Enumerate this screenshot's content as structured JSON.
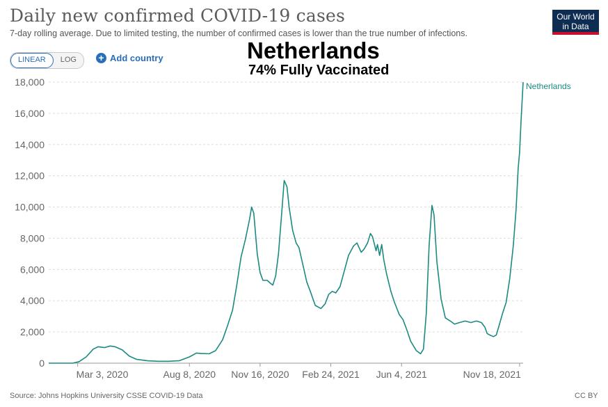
{
  "header": {
    "title": "Daily new confirmed COVID-19 cases",
    "subtitle": "7-day rolling average. Due to limited testing, the number of confirmed cases is lower than the true number of infections.",
    "logo_line1": "Our World",
    "logo_line2": "in Data"
  },
  "controls": {
    "linear_label": "LINEAR",
    "log_label": "LOG",
    "add_icon": "plus-circle-icon",
    "add_country_label": "Add country"
  },
  "overlay": {
    "title": "Netherlands",
    "subtitle": "74% Fully Vaccinated"
  },
  "footer": {
    "source": "Source: Johns Hopkins University CSSE COVID-19 Data",
    "license": "CC BY"
  },
  "colors": {
    "series": "#1b8a80",
    "accent": "#2a6ebb"
  },
  "chart_data": {
    "type": "line",
    "title": "Daily new confirmed COVID-19 cases",
    "xlabel": "",
    "ylabel": "",
    "grid": true,
    "legend": "end-of-line label",
    "ylim": [
      0,
      18000
    ],
    "xlim": [
      "2020-01-22",
      "2021-11-23"
    ],
    "x_ticks": [
      "2020-03-03",
      "2020-08-08",
      "2020-11-16",
      "2021-02-24",
      "2021-06-04",
      "2021-11-18"
    ],
    "x_tick_labels": [
      "Mar 3, 2020",
      "Aug 8, 2020",
      "Nov 16, 2020",
      "Feb 24, 2021",
      "Jun 4, 2021",
      "Nov 18, 2021"
    ],
    "y_ticks": [
      0,
      2000,
      4000,
      6000,
      8000,
      10000,
      12000,
      14000,
      16000,
      18000
    ],
    "y_tick_labels": [
      "0",
      "2,000",
      "4,000",
      "6,000",
      "8,000",
      "10,000",
      "12,000",
      "14,000",
      "16,000",
      "18,000"
    ],
    "series": [
      {
        "name": "Netherlands",
        "points": [
          [
            "2020-01-22",
            0
          ],
          [
            "2020-02-25",
            0
          ],
          [
            "2020-03-05",
            100
          ],
          [
            "2020-03-15",
            400
          ],
          [
            "2020-03-25",
            900
          ],
          [
            "2020-04-01",
            1050
          ],
          [
            "2020-04-10",
            1000
          ],
          [
            "2020-04-18",
            1100
          ],
          [
            "2020-04-25",
            1050
          ],
          [
            "2020-05-05",
            850
          ],
          [
            "2020-05-15",
            450
          ],
          [
            "2020-05-25",
            250
          ],
          [
            "2020-06-10",
            150
          ],
          [
            "2020-06-25",
            120
          ],
          [
            "2020-07-10",
            120
          ],
          [
            "2020-07-25",
            160
          ],
          [
            "2020-08-08",
            400
          ],
          [
            "2020-08-18",
            650
          ],
          [
            "2020-08-24",
            620
          ],
          [
            "2020-09-05",
            600
          ],
          [
            "2020-09-14",
            800
          ],
          [
            "2020-09-24",
            1500
          ],
          [
            "2020-10-01",
            2400
          ],
          [
            "2020-10-08",
            3400
          ],
          [
            "2020-10-14",
            5000
          ],
          [
            "2020-10-20",
            6800
          ],
          [
            "2020-10-26",
            7900
          ],
          [
            "2020-11-01",
            9200
          ],
          [
            "2020-11-04",
            10000
          ],
          [
            "2020-11-07",
            9600
          ],
          [
            "2020-11-12",
            7000
          ],
          [
            "2020-11-16",
            5800
          ],
          [
            "2020-11-20",
            5300
          ],
          [
            "2020-11-26",
            5300
          ],
          [
            "2020-12-01",
            5100
          ],
          [
            "2020-12-04",
            5000
          ],
          [
            "2020-12-08",
            5600
          ],
          [
            "2020-12-12",
            7000
          ],
          [
            "2020-12-16",
            9300
          ],
          [
            "2020-12-20",
            11700
          ],
          [
            "2020-12-24",
            11300
          ],
          [
            "2020-12-27",
            10000
          ],
          [
            "2021-01-01",
            8500
          ],
          [
            "2021-01-06",
            7700
          ],
          [
            "2021-01-10",
            7400
          ],
          [
            "2021-01-15",
            6400
          ],
          [
            "2021-01-21",
            5200
          ],
          [
            "2021-01-26",
            4600
          ],
          [
            "2021-02-02",
            3700
          ],
          [
            "2021-02-10",
            3500
          ],
          [
            "2021-02-16",
            3800
          ],
          [
            "2021-02-21",
            4400
          ],
          [
            "2021-02-26",
            4600
          ],
          [
            "2021-03-03",
            4500
          ],
          [
            "2021-03-09",
            4900
          ],
          [
            "2021-03-15",
            5900
          ],
          [
            "2021-03-21",
            6900
          ],
          [
            "2021-03-28",
            7500
          ],
          [
            "2021-04-02",
            7700
          ],
          [
            "2021-04-08",
            7100
          ],
          [
            "2021-04-12",
            7300
          ],
          [
            "2021-04-17",
            7700
          ],
          [
            "2021-04-21",
            8300
          ],
          [
            "2021-04-24",
            8100
          ],
          [
            "2021-04-29",
            7200
          ],
          [
            "2021-05-01",
            7600
          ],
          [
            "2021-05-04",
            6900
          ],
          [
            "2021-05-07",
            7600
          ],
          [
            "2021-05-10",
            6600
          ],
          [
            "2021-05-14",
            5700
          ],
          [
            "2021-05-20",
            4600
          ],
          [
            "2021-05-25",
            3900
          ],
          [
            "2021-06-01",
            3100
          ],
          [
            "2021-06-06",
            2800
          ],
          [
            "2021-06-11",
            2200
          ],
          [
            "2021-06-17",
            1400
          ],
          [
            "2021-06-25",
            800
          ],
          [
            "2021-07-01",
            600
          ],
          [
            "2021-07-05",
            900
          ],
          [
            "2021-07-09",
            3200
          ],
          [
            "2021-07-13",
            7500
          ],
          [
            "2021-07-17",
            10100
          ],
          [
            "2021-07-20",
            9500
          ],
          [
            "2021-07-24",
            6500
          ],
          [
            "2021-07-30",
            4100
          ],
          [
            "2021-08-05",
            2900
          ],
          [
            "2021-08-12",
            2700
          ],
          [
            "2021-08-18",
            2500
          ],
          [
            "2021-08-25",
            2600
          ],
          [
            "2021-09-02",
            2700
          ],
          [
            "2021-09-10",
            2600
          ],
          [
            "2021-09-18",
            2700
          ],
          [
            "2021-09-25",
            2600
          ],
          [
            "2021-09-30",
            2300
          ],
          [
            "2021-10-03",
            1900
          ],
          [
            "2021-10-07",
            1800
          ],
          [
            "2021-10-12",
            1700
          ],
          [
            "2021-10-16",
            1800
          ],
          [
            "2021-10-20",
            2400
          ],
          [
            "2021-10-25",
            3200
          ],
          [
            "2021-10-30",
            3900
          ],
          [
            "2021-11-04",
            5400
          ],
          [
            "2021-11-09",
            7500
          ],
          [
            "2021-11-13",
            9800
          ],
          [
            "2021-11-16",
            12500
          ],
          [
            "2021-11-18",
            13500
          ],
          [
            "2021-11-20",
            15500
          ],
          [
            "2021-11-23",
            18000
          ]
        ]
      }
    ]
  }
}
